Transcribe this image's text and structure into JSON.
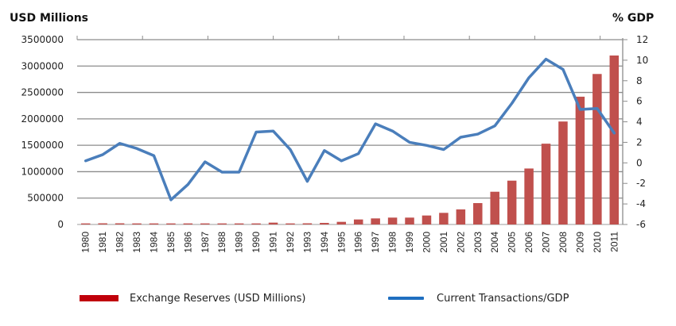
{
  "chart_data": {
    "type": "bar+line",
    "left_axis_title": "USD Millions",
    "right_axis_title": "% GDP",
    "categories": [
      "1980",
      "1981",
      "1982",
      "1983",
      "1984",
      "1985",
      "1986",
      "1987",
      "1988",
      "1989",
      "1990",
      "1991",
      "1992",
      "1993",
      "1994",
      "1995",
      "1996",
      "1997",
      "1998",
      "1999",
      "2000",
      "2001",
      "2002",
      "2003",
      "2004",
      "2005",
      "2006",
      "2007",
      "2008",
      "2009",
      "2010",
      "2011"
    ],
    "left_ylim": [
      0,
      3500000
    ],
    "left_ticks": [
      "0",
      "500000",
      "1000000",
      "1500000",
      "2000000",
      "2500000",
      "3000000",
      "3500000"
    ],
    "left_tick_values": [
      0,
      500000,
      1000000,
      1500000,
      2000000,
      2500000,
      3000000,
      3500000
    ],
    "right_ylim": [
      -6,
      12
    ],
    "right_ticks": [
      "-6",
      "-4",
      "-2",
      "0",
      "2",
      "4",
      "6",
      "8",
      "10",
      "12"
    ],
    "right_tick_values": [
      -6,
      -4,
      -2,
      0,
      2,
      4,
      6,
      8,
      10,
      12
    ],
    "grid": true,
    "legend_position": "bottom",
    "series": [
      {
        "name": "Exchange Reserves (USD Millions)",
        "type": "bar",
        "axis": "left",
        "color": "#c0504d",
        "legend_color": "#c0000a",
        "values": [
          20000,
          22000,
          22000,
          20000,
          20000,
          20000,
          20000,
          20000,
          20000,
          20000,
          20000,
          35000,
          20000,
          22000,
          30000,
          50000,
          95000,
          115000,
          130000,
          130000,
          170000,
          220000,
          285000,
          405000,
          620000,
          830000,
          1060000,
          1530000,
          1950000,
          2420000,
          2850000,
          3200000
        ]
      },
      {
        "name": "Current Transactions/GDP",
        "type": "line",
        "axis": "right",
        "color": "#4a7ebb",
        "legend_color": "#1f6fc0",
        "values": [
          0.2,
          0.8,
          1.9,
          1.4,
          0.7,
          -3.6,
          -2.1,
          0.1,
          -0.9,
          -0.9,
          3.0,
          3.1,
          1.3,
          -1.8,
          1.2,
          0.2,
          0.9,
          3.8,
          3.1,
          2.0,
          1.7,
          1.3,
          2.5,
          2.8,
          3.6,
          5.8,
          8.3,
          10.1,
          9.1,
          5.2,
          5.3,
          2.9
        ]
      }
    ]
  }
}
